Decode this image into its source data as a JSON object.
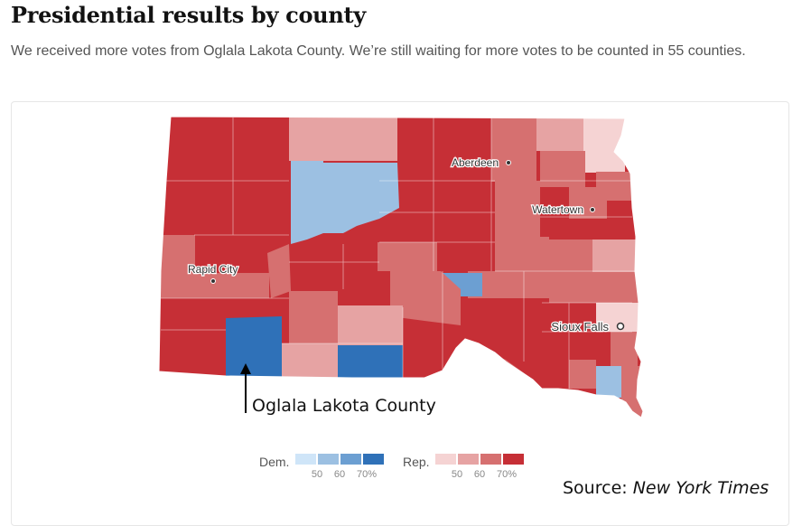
{
  "header": {
    "title": "Presidential results by county",
    "subtitle": "We received more votes from Oglala Lakota County. We’re still waiting for more votes to be counted in 55 counties."
  },
  "map": {
    "colors": {
      "dem_50": "#cfe5f8",
      "dem_60": "#9cc0e2",
      "dem_65": "#6c9fd2",
      "dem_70": "#2f71b8",
      "rep_50": "#f5d3d3",
      "rep_60": "#e6a3a3",
      "rep_65": "#d67070",
      "rep_70": "#c62f36"
    },
    "cities": [
      {
        "name": "Aberdeen"
      },
      {
        "name": "Watertown"
      },
      {
        "name": "Rapid City"
      },
      {
        "name": "Sioux Falls"
      }
    ]
  },
  "annotation": {
    "label": "Oglala Lakota County"
  },
  "legend": {
    "dem_label": "Dem.",
    "rep_label": "Rep.",
    "ticks": [
      "50",
      "60",
      "70%"
    ]
  },
  "source": {
    "prefix": "Source:",
    "name": "New York Times"
  }
}
